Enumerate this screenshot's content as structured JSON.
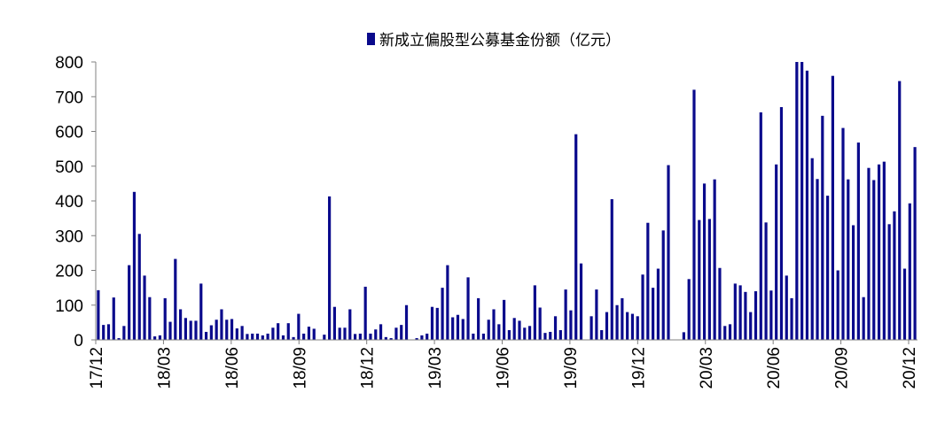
{
  "chart_data": {
    "type": "bar",
    "title": "",
    "xlabel": "",
    "ylabel": "",
    "ylim": [
      0,
      800
    ],
    "yticks": [
      0,
      100,
      200,
      300,
      400,
      500,
      600,
      700,
      800
    ],
    "grid": false,
    "legend_position": "top-center",
    "bar_color": "#0A0A8C",
    "axis_color": "#808080",
    "x_tick_labels": [
      "17/12",
      "18/03",
      "18/06",
      "18/09",
      "18/12",
      "19/03",
      "19/06",
      "19/09",
      "19/12",
      "20/03",
      "20/06",
      "20/09",
      "20/12"
    ],
    "series": [
      {
        "name": "新成立偏股型公募基金份额（亿元）",
        "values": [
          143,
          43,
          45,
          122,
          5,
          40,
          215,
          426,
          305,
          185,
          123,
          10,
          13,
          120,
          52,
          233,
          88,
          63,
          55,
          55,
          162,
          23,
          42,
          58,
          88,
          58,
          60,
          33,
          40,
          17,
          18,
          18,
          13,
          18,
          35,
          48,
          13,
          48,
          8,
          75,
          18,
          38,
          32,
          0,
          15,
          413,
          95,
          35,
          35,
          88,
          17,
          18,
          153,
          18,
          30,
          45,
          8,
          5,
          35,
          43,
          100,
          0,
          5,
          13,
          18,
          95,
          92,
          150,
          215,
          65,
          72,
          60,
          180,
          18,
          120,
          18,
          58,
          88,
          45,
          115,
          28,
          63,
          55,
          35,
          40,
          157,
          93,
          20,
          23,
          68,
          28,
          145,
          85,
          592,
          220,
          0,
          68,
          145,
          28,
          80,
          405,
          100,
          120,
          80,
          75,
          68,
          188,
          337,
          150,
          205,
          315,
          503,
          0,
          0,
          22,
          175,
          720,
          345,
          450,
          348,
          462,
          207,
          40,
          45,
          162,
          157,
          138,
          80,
          140,
          655,
          338,
          142,
          505,
          670,
          185,
          120,
          800,
          800,
          775,
          523,
          463,
          645,
          415,
          760,
          200,
          610,
          462,
          330,
          568,
          123,
          495,
          460,
          505,
          513,
          333,
          370,
          745,
          205,
          393,
          555
        ]
      }
    ]
  }
}
